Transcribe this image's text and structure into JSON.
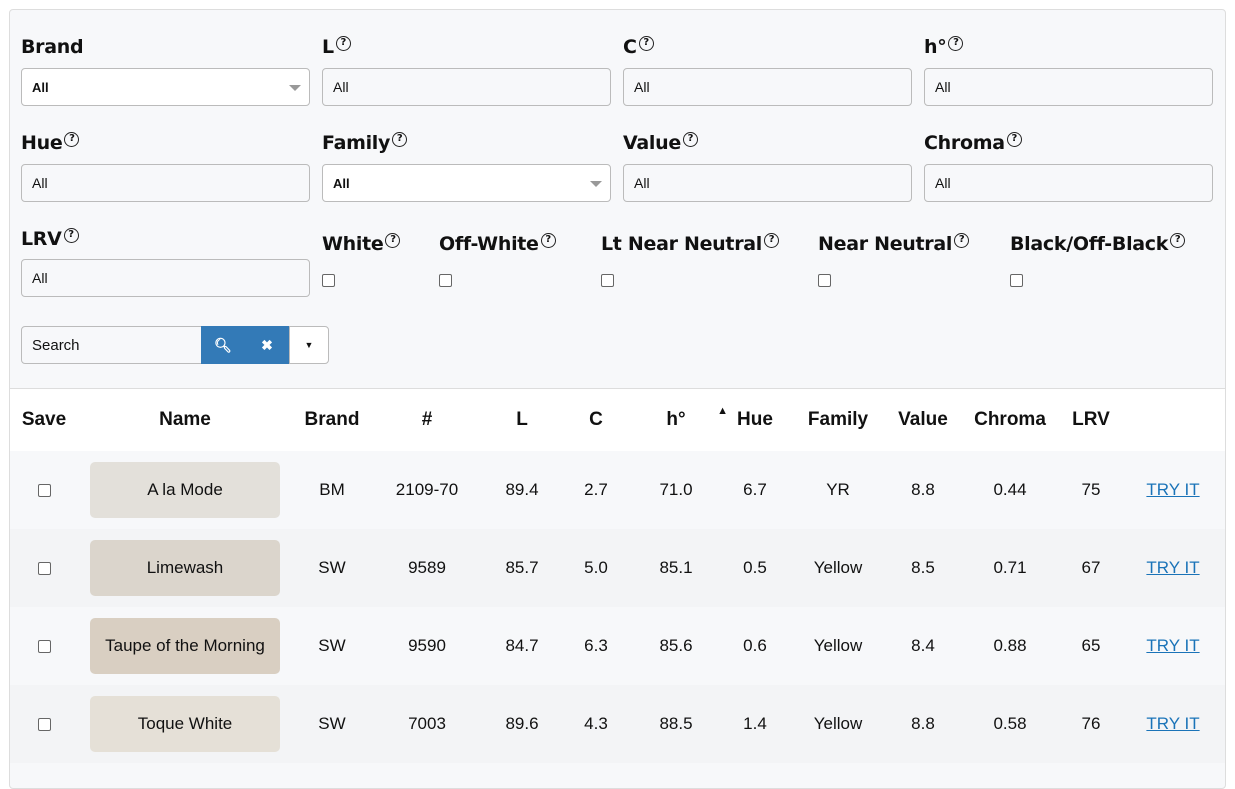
{
  "filters": {
    "brand": {
      "label": "Brand",
      "value": "All"
    },
    "l": {
      "label": "L",
      "value": "All"
    },
    "c": {
      "label": "C",
      "value": "All"
    },
    "h": {
      "label": "h°",
      "value": "All"
    },
    "hue": {
      "label": "Hue",
      "value": "All"
    },
    "family": {
      "label": "Family",
      "value": "All"
    },
    "value": {
      "label": "Value",
      "value": "All"
    },
    "chroma": {
      "label": "Chroma",
      "value": "All"
    },
    "lrv": {
      "label": "LRV",
      "value": "All"
    },
    "checks": [
      {
        "label": "White"
      },
      {
        "label": "Off-White"
      },
      {
        "label": "Lt Near Neutral"
      },
      {
        "label": "Near Neutral"
      },
      {
        "label": "Black/Off-Black"
      }
    ],
    "search": {
      "placeholder": "Search"
    }
  },
  "colors": {
    "accent": "#337ab7"
  },
  "table": {
    "headers": [
      "Save",
      "Name",
      "Brand",
      "#",
      "L",
      "C",
      "h°",
      "Hue",
      "Family",
      "Value",
      "Chroma",
      "LRV"
    ],
    "sort": {
      "column": "h°",
      "direction": "ascending"
    },
    "rows": [
      {
        "name": "A la Mode",
        "swatch": "#e3e0da",
        "brand": "BM",
        "num": "2109-70",
        "l": "89.4",
        "c": "2.7",
        "h": "71.0",
        "hue": "6.7",
        "family": "YR",
        "value": "8.8",
        "chroma": "0.44",
        "lrv": "75",
        "action": "TRY IT"
      },
      {
        "name": "Limewash",
        "swatch": "#dbd5cc",
        "brand": "SW",
        "num": "9589",
        "l": "85.7",
        "c": "5.0",
        "h": "85.1",
        "hue": "0.5",
        "family": "Yellow",
        "value": "8.5",
        "chroma": "0.71",
        "lrv": "67",
        "action": "TRY IT"
      },
      {
        "name": "Taupe of the Morning",
        "swatch": "#d9cfc2",
        "brand": "SW",
        "num": "9590",
        "l": "84.7",
        "c": "6.3",
        "h": "85.6",
        "hue": "0.6",
        "family": "Yellow",
        "value": "8.4",
        "chroma": "0.88",
        "lrv": "65",
        "action": "TRY IT"
      },
      {
        "name": "Toque White",
        "swatch": "#e5e0d7",
        "brand": "SW",
        "num": "7003",
        "l": "89.6",
        "c": "4.3",
        "h": "88.5",
        "hue": "1.4",
        "family": "Yellow",
        "value": "8.8",
        "chroma": "0.58",
        "lrv": "76",
        "action": "TRY IT"
      }
    ]
  }
}
